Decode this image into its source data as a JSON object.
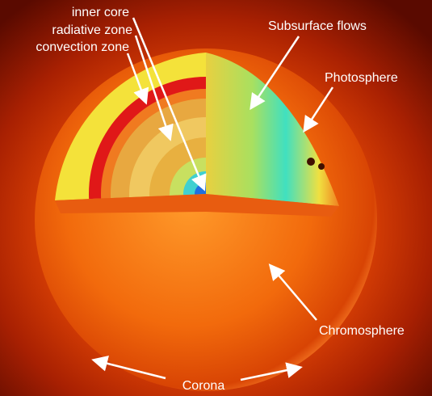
{
  "labels": {
    "inner_core": "inner core",
    "radiative_zone": "radiative zone",
    "convection_zone": "convection zone",
    "subsurface_flows": "Subsurface flows",
    "photosphere": "Photosphere",
    "chromosphere": "Chromosphere",
    "corona": "Corona"
  }
}
